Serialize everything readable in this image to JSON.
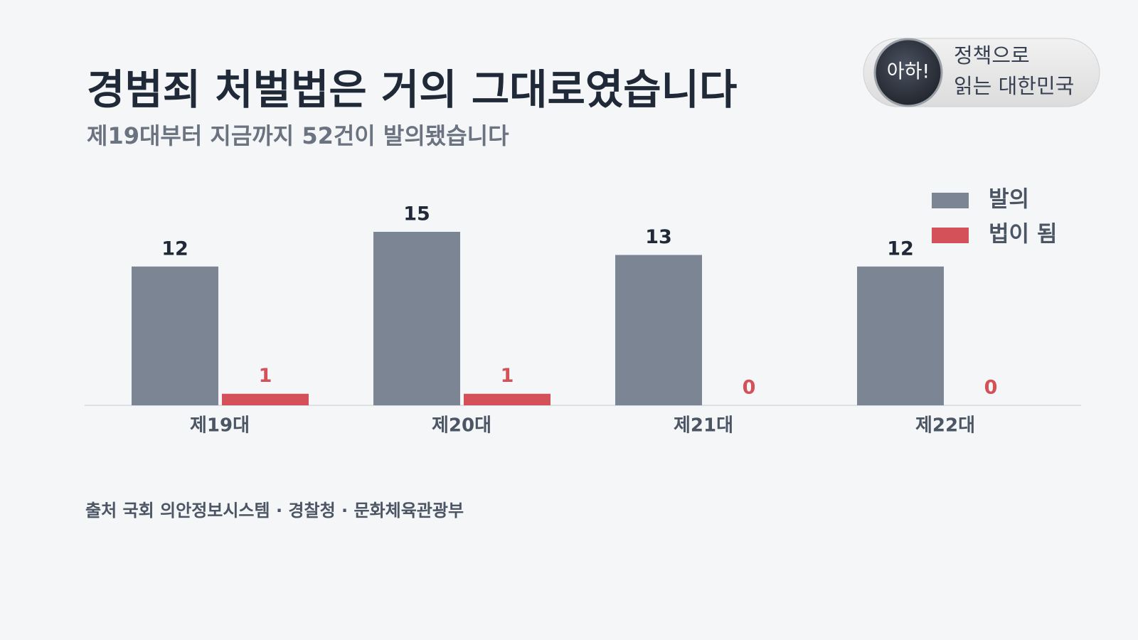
{
  "chart_data": {
    "type": "bar",
    "title": "경범죄 처벌법은 거의 그대로였습니다",
    "subtitle": "제19대부터 지금까지 52건이 발의됐습니다",
    "categories": [
      "제19대",
      "제20대",
      "제21대",
      "제22대"
    ],
    "series": [
      {
        "name": "발의",
        "color": "#7b8594",
        "values": [
          12,
          15,
          13,
          12
        ]
      },
      {
        "name": "법이 됨",
        "color": "#d4515a",
        "values": [
          1,
          1,
          0,
          0
        ]
      }
    ],
    "legend": "upper right",
    "grid": false,
    "source": "출처 국회 의안정보시스템 · 경찰청 · 문화체육관광부",
    "badge": {
      "mark": "아하!",
      "lines": [
        "정책으로",
        "읽는 대한민국"
      ]
    }
  }
}
